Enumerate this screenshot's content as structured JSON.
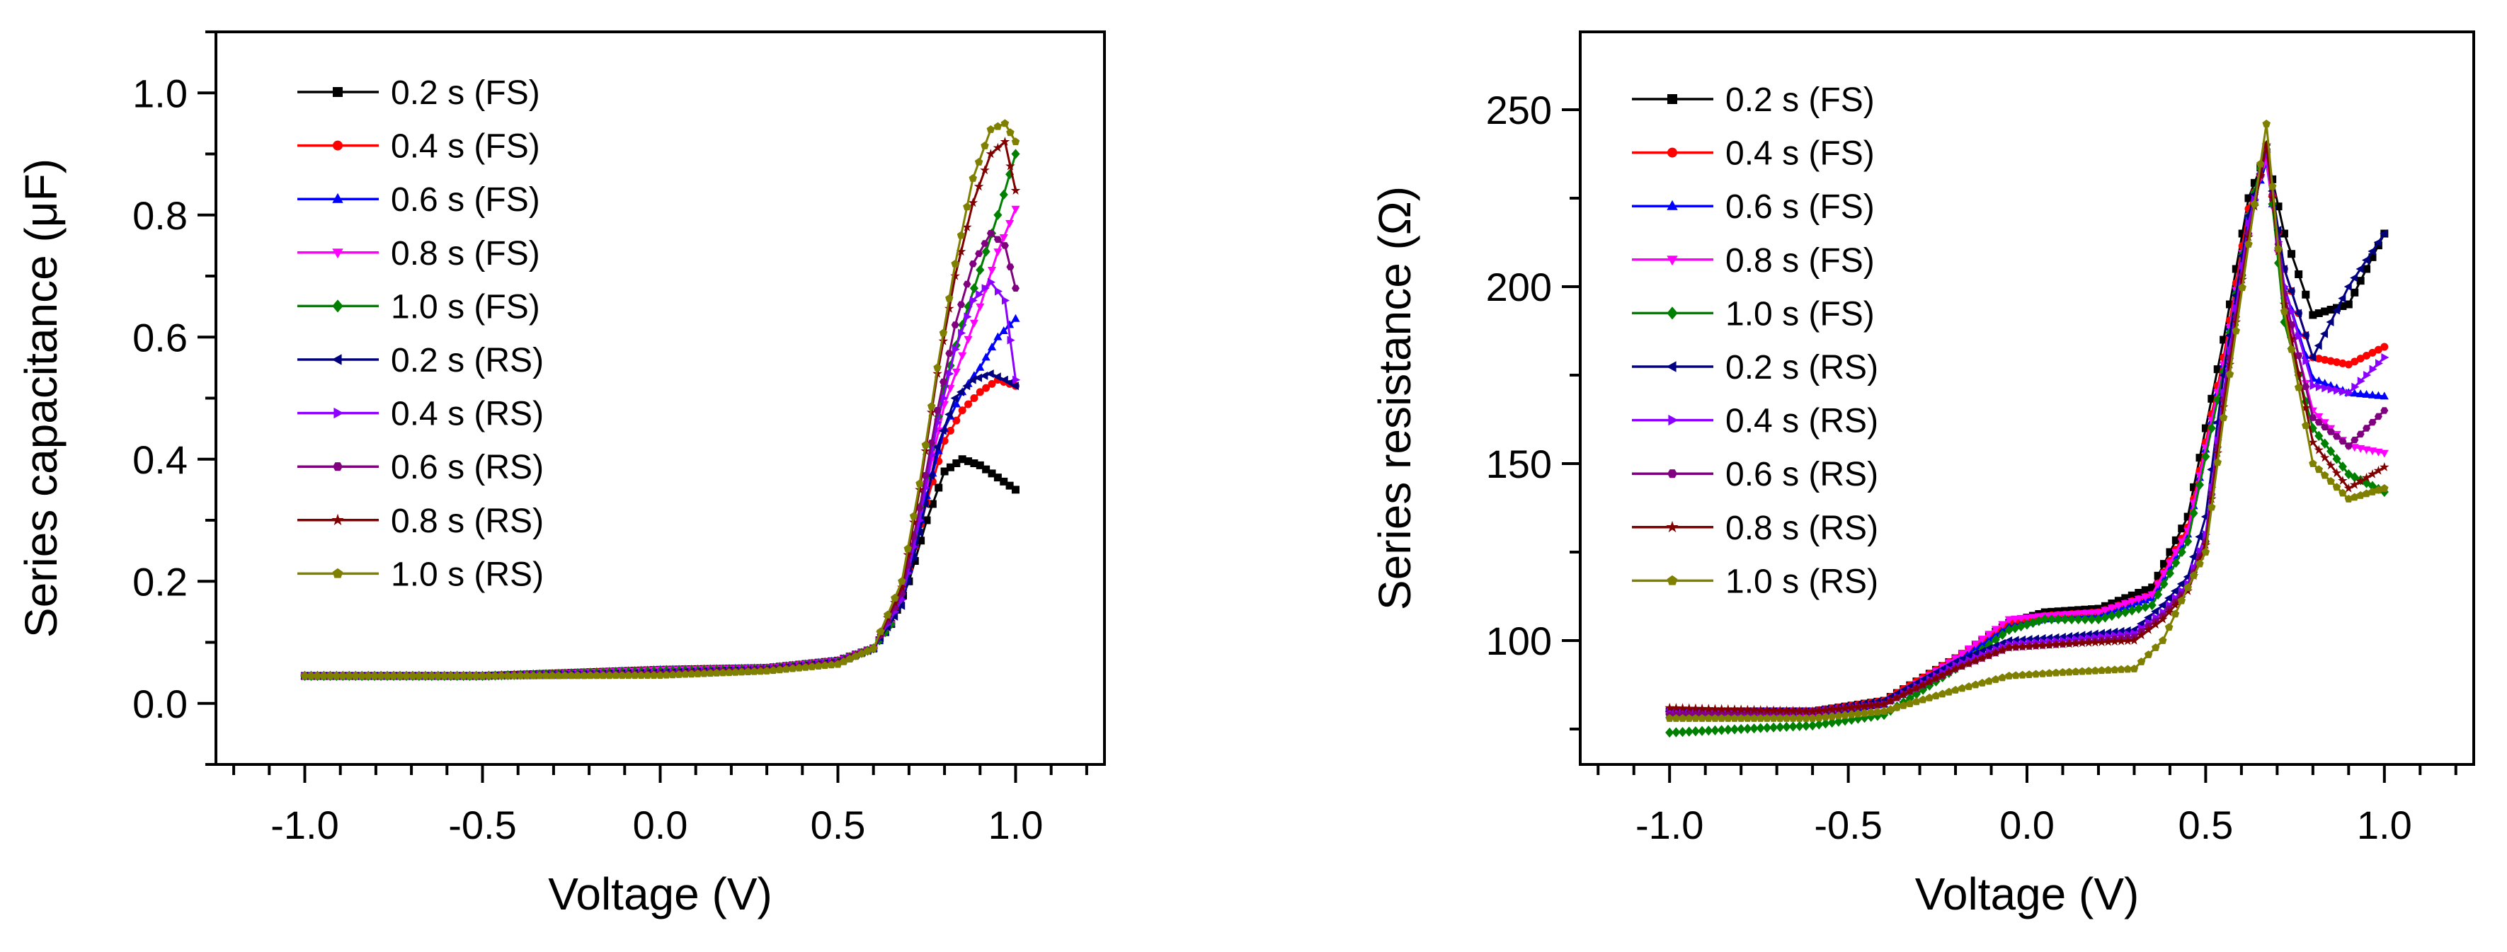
{
  "figure": {
    "description_panels": 2
  },
  "legend_entries": [
    {
      "label": "0.2 s (FS)",
      "color": "#000000",
      "marker": "square"
    },
    {
      "label": "0.4 s (FS)",
      "color": "#ff0000",
      "marker": "circle"
    },
    {
      "label": "0.6 s (FS)",
      "color": "#0000ff",
      "marker": "triangle-up"
    },
    {
      "label": "0.8 s (FS)",
      "color": "#ff00ff",
      "marker": "triangle-down"
    },
    {
      "label": "1.0 s (FS)",
      "color": "#008000",
      "marker": "diamond"
    },
    {
      "label": "0.2 s (RS)",
      "color": "#000080",
      "marker": "triangle-left"
    },
    {
      "label": "0.4 s (RS)",
      "color": "#8b00ff",
      "marker": "triangle-right"
    },
    {
      "label": "0.6 s (RS)",
      "color": "#800080",
      "marker": "hexagon"
    },
    {
      "label": "0.8 s (RS)",
      "color": "#800000",
      "marker": "star"
    },
    {
      "label": "1.0 s (RS)",
      "color": "#808000",
      "marker": "pentagon"
    }
  ],
  "chart_data": [
    {
      "type": "line",
      "title": "",
      "xlabel": "Voltage (V)",
      "ylabel": "Series capacitance (μF)",
      "xlim": [
        -1.25,
        1.25
      ],
      "ylim": [
        -0.1,
        1.1
      ],
      "x_ticks": [
        -1.0,
        -0.5,
        0.0,
        0.5,
        1.0
      ],
      "x_tick_labels": [
        "-1.0",
        "-0.5",
        "0.0",
        "0.5",
        "1.0"
      ],
      "y_ticks": [
        0.0,
        0.2,
        0.4,
        0.6,
        0.8,
        1.0
      ],
      "y_tick_labels": [
        "0.0",
        "0.2",
        "0.4",
        "0.6",
        "0.8",
        "1.0"
      ],
      "grid": false,
      "legend_position": "top-left",
      "series": [
        {
          "name": "0.2 s (FS)",
          "x": [
            -1.0,
            -0.5,
            0.0,
            0.3,
            0.5,
            0.6,
            0.65,
            0.7,
            0.75,
            0.8,
            0.85,
            0.9,
            0.95,
            1.0
          ],
          "values": [
            0.045,
            0.045,
            0.055,
            0.058,
            0.07,
            0.09,
            0.13,
            0.2,
            0.3,
            0.38,
            0.4,
            0.39,
            0.37,
            0.35
          ]
        },
        {
          "name": "0.4 s (FS)",
          "x": [
            -1.0,
            -0.5,
            0.0,
            0.3,
            0.5,
            0.6,
            0.65,
            0.7,
            0.75,
            0.8,
            0.85,
            0.9,
            0.95,
            1.0
          ],
          "values": [
            0.045,
            0.045,
            0.055,
            0.058,
            0.07,
            0.09,
            0.13,
            0.22,
            0.33,
            0.43,
            0.48,
            0.51,
            0.53,
            0.52
          ]
        },
        {
          "name": "0.6 s (FS)",
          "x": [
            -1.0,
            -0.5,
            0.0,
            0.3,
            0.5,
            0.6,
            0.65,
            0.7,
            0.75,
            0.8,
            0.85,
            0.9,
            0.95,
            1.0
          ],
          "values": [
            0.045,
            0.045,
            0.055,
            0.058,
            0.07,
            0.09,
            0.13,
            0.22,
            0.34,
            0.45,
            0.51,
            0.55,
            0.6,
            0.63
          ]
        },
        {
          "name": "0.8 s (FS)",
          "x": [
            -1.0,
            -0.5,
            0.0,
            0.3,
            0.5,
            0.6,
            0.65,
            0.7,
            0.75,
            0.8,
            0.85,
            0.9,
            0.95,
            1.0
          ],
          "values": [
            0.045,
            0.045,
            0.055,
            0.058,
            0.07,
            0.09,
            0.13,
            0.23,
            0.36,
            0.49,
            0.57,
            0.65,
            0.74,
            0.81
          ]
        },
        {
          "name": "1.0 s (FS)",
          "x": [
            -1.0,
            -0.5,
            0.0,
            0.3,
            0.5,
            0.6,
            0.65,
            0.7,
            0.75,
            0.8,
            0.85,
            0.9,
            0.95,
            1.0
          ],
          "values": [
            0.045,
            0.045,
            0.053,
            0.056,
            0.068,
            0.09,
            0.13,
            0.23,
            0.37,
            0.52,
            0.62,
            0.71,
            0.8,
            0.9
          ]
        },
        {
          "name": "0.2 s (RS)",
          "x": [
            1.0,
            0.97,
            0.93,
            0.88,
            0.83,
            0.78,
            0.73,
            0.68,
            0.6,
            0.5,
            0.3,
            0.0,
            -0.5,
            -1.0
          ],
          "values": [
            0.52,
            0.53,
            0.54,
            0.53,
            0.5,
            0.42,
            0.28,
            0.16,
            0.09,
            0.068,
            0.056,
            0.05,
            0.045,
            0.045
          ]
        },
        {
          "name": "0.4 s (RS)",
          "x": [
            1.0,
            0.97,
            0.93,
            0.88,
            0.83,
            0.78,
            0.73,
            0.68,
            0.6,
            0.5,
            0.3,
            0.0,
            -0.5,
            -1.0
          ],
          "values": [
            0.53,
            0.66,
            0.69,
            0.66,
            0.58,
            0.46,
            0.3,
            0.17,
            0.09,
            0.068,
            0.056,
            0.05,
            0.045,
            0.045
          ]
        },
        {
          "name": "0.6 s (RS)",
          "x": [
            1.0,
            0.97,
            0.93,
            0.88,
            0.83,
            0.78,
            0.73,
            0.68,
            0.6,
            0.5,
            0.3,
            0.0,
            -0.5,
            -1.0
          ],
          "values": [
            0.68,
            0.75,
            0.77,
            0.72,
            0.62,
            0.48,
            0.32,
            0.18,
            0.09,
            0.066,
            0.055,
            0.048,
            0.045,
            0.045
          ]
        },
        {
          "name": "0.8 s (RS)",
          "x": [
            1.0,
            0.97,
            0.93,
            0.88,
            0.83,
            0.78,
            0.73,
            0.68,
            0.6,
            0.5,
            0.3,
            0.0,
            -0.5,
            -1.0
          ],
          "values": [
            0.84,
            0.92,
            0.9,
            0.82,
            0.7,
            0.54,
            0.35,
            0.19,
            0.09,
            0.066,
            0.055,
            0.048,
            0.045,
            0.045
          ]
        },
        {
          "name": "1.0 s (RS)",
          "x": [
            1.0,
            0.97,
            0.93,
            0.88,
            0.83,
            0.78,
            0.73,
            0.68,
            0.6,
            0.5,
            0.3,
            0.0,
            -0.5,
            -1.0
          ],
          "values": [
            0.92,
            0.95,
            0.94,
            0.86,
            0.72,
            0.55,
            0.36,
            0.2,
            0.09,
            0.064,
            0.053,
            0.046,
            0.045,
            0.045
          ]
        }
      ]
    },
    {
      "type": "line",
      "title": "",
      "xlabel": "Voltage (V)",
      "ylabel": "Series resistance (Ω)",
      "xlim": [
        -1.25,
        1.25
      ],
      "ylim": [
        65,
        272
      ],
      "x_ticks": [
        -1.0,
        -0.5,
        0.0,
        0.5,
        1.0
      ],
      "x_tick_labels": [
        "-1.0",
        "-0.5",
        "0.0",
        "0.5",
        "1.0"
      ],
      "y_ticks": [
        100,
        150,
        200,
        250
      ],
      "y_tick_labels": [
        "100",
        "150",
        "200",
        "250"
      ],
      "grid": false,
      "legend_position": "top-left",
      "series": [
        {
          "name": "0.2 s (FS)",
          "x": [
            -1.0,
            -0.6,
            -0.4,
            -0.2,
            -0.05,
            0.05,
            0.2,
            0.35,
            0.45,
            0.55,
            0.62,
            0.67,
            0.72,
            0.8,
            0.9,
            1.0
          ],
          "values": [
            80,
            80,
            83,
            95,
            105,
            108,
            109,
            115,
            135,
            185,
            225,
            238,
            215,
            192,
            195,
            215
          ]
        },
        {
          "name": "0.4 s (FS)",
          "x": [
            -1.0,
            -0.6,
            -0.4,
            -0.2,
            -0.05,
            0.05,
            0.2,
            0.35,
            0.45,
            0.55,
            0.62,
            0.67,
            0.72,
            0.8,
            0.9,
            1.0
          ],
          "values": [
            80,
            80,
            83,
            95,
            105,
            107,
            108,
            113,
            132,
            180,
            222,
            236,
            205,
            180,
            178,
            183
          ]
        },
        {
          "name": "0.6 s (FS)",
          "x": [
            -1.0,
            -0.6,
            -0.4,
            -0.2,
            -0.05,
            0.05,
            0.2,
            0.35,
            0.45,
            0.55,
            0.62,
            0.67,
            0.72,
            0.8,
            0.9,
            1.0
          ],
          "values": [
            79,
            79,
            82,
            94,
            104,
            106,
            107,
            112,
            130,
            178,
            220,
            235,
            200,
            174,
            170,
            169
          ]
        },
        {
          "name": "0.8 s (FS)",
          "x": [
            -1.0,
            -0.6,
            -0.4,
            -0.2,
            -0.05,
            0.05,
            0.2,
            0.35,
            0.45,
            0.55,
            0.62,
            0.67,
            0.72,
            0.8,
            0.9,
            1.0
          ],
          "values": [
            79,
            79,
            82,
            95,
            106,
            107,
            108,
            113,
            131,
            178,
            220,
            236,
            196,
            165,
            155,
            153
          ]
        },
        {
          "name": "1.0 s (FS)",
          "x": [
            -1.0,
            -0.6,
            -0.4,
            -0.2,
            -0.05,
            0.05,
            0.2,
            0.35,
            0.45,
            0.55,
            0.62,
            0.67,
            0.72,
            0.8,
            0.9,
            1.0
          ],
          "values": [
            74,
            76,
            79,
            92,
            103,
            106,
            106,
            110,
            128,
            176,
            220,
            240,
            190,
            160,
            147,
            142
          ]
        },
        {
          "name": "0.2 s (RS)",
          "x": [
            1.0,
            0.9,
            0.8,
            0.72,
            0.67,
            0.62,
            0.55,
            0.5,
            0.45,
            0.38,
            0.3,
            0.1,
            -0.05,
            -0.2,
            -0.4,
            -0.6,
            -1.0
          ],
          "values": [
            215,
            200,
            180,
            205,
            238,
            220,
            175,
            135,
            118,
            110,
            103,
            101,
            100,
            94,
            83,
            80,
            80
          ]
        },
        {
          "name": "0.4 s (RS)",
          "x": [
            1.0,
            0.9,
            0.8,
            0.72,
            0.67,
            0.62,
            0.55,
            0.5,
            0.45,
            0.38,
            0.3,
            0.1,
            -0.05,
            -0.2,
            -0.4,
            -0.6,
            -1.0
          ],
          "values": [
            180,
            170,
            172,
            200,
            238,
            218,
            170,
            130,
            116,
            108,
            102,
            100,
            99,
            93,
            82,
            80,
            80
          ]
        },
        {
          "name": "0.6 s (RS)",
          "x": [
            1.0,
            0.9,
            0.8,
            0.72,
            0.67,
            0.62,
            0.55,
            0.5,
            0.45,
            0.38,
            0.3,
            0.1,
            -0.05,
            -0.2,
            -0.4,
            -0.6,
            -1.0
          ],
          "values": [
            165,
            155,
            163,
            198,
            240,
            215,
            168,
            128,
            115,
            107,
            101,
            99,
            98,
            92,
            82,
            80,
            79
          ]
        },
        {
          "name": "0.8 s (RS)",
          "x": [
            1.0,
            0.9,
            0.8,
            0.72,
            0.67,
            0.62,
            0.55,
            0.5,
            0.45,
            0.38,
            0.3,
            0.1,
            -0.05,
            -0.2,
            -0.4,
            -0.6,
            -1.0
          ],
          "values": [
            149,
            143,
            156,
            195,
            240,
            214,
            166,
            127,
            114,
            106,
            100,
            99,
            98,
            92,
            82,
            80,
            81
          ]
        },
        {
          "name": "1.0 s (RS)",
          "x": [
            1.0,
            0.9,
            0.8,
            0.72,
            0.67,
            0.62,
            0.55,
            0.5,
            0.45,
            0.38,
            0.3,
            0.1,
            -0.05,
            -0.2,
            -0.4,
            -0.6,
            -1.0
          ],
          "values": [
            143,
            140,
            150,
            193,
            246,
            212,
            163,
            125,
            115,
            100,
            92,
            91,
            90,
            86,
            80,
            78,
            78
          ]
        }
      ]
    }
  ]
}
